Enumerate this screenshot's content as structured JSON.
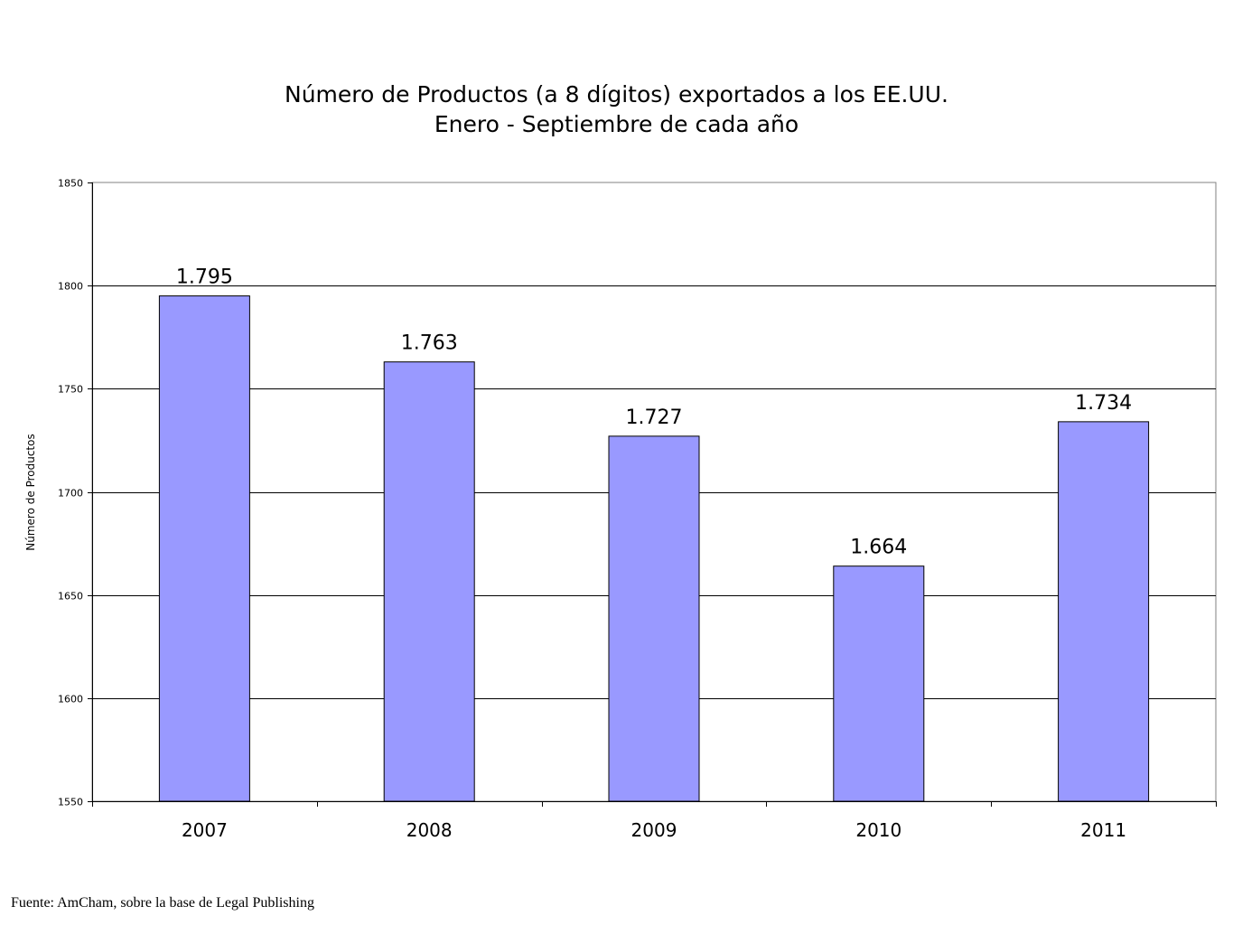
{
  "chart_data": {
    "type": "bar",
    "title": "Número de Productos (a 8 dígitos) exportados a los EE.UU.",
    "subtitle": "Enero - Septiembre de cada año",
    "xlabel": "",
    "ylabel": "Número de Productos",
    "categories": [
      "2007",
      "2008",
      "2009",
      "2010",
      "2011"
    ],
    "values": [
      1795,
      1763,
      1727,
      1664,
      1734
    ],
    "data_labels": [
      "1.795",
      "1.763",
      "1.727",
      "1.664",
      "1.734"
    ],
    "ylim": [
      1550,
      1850
    ],
    "yticks": [
      "1550",
      "1600",
      "1650",
      "1700",
      "1750",
      "1800",
      "1850"
    ],
    "ytick_values": [
      1550,
      1600,
      1650,
      1700,
      1750,
      1800,
      1850
    ],
    "grid": true,
    "bar_color": "#9999ff",
    "legend": "none"
  },
  "footer": {
    "source": "Fuente: AmCham, sobre la base de Legal Publishing"
  }
}
